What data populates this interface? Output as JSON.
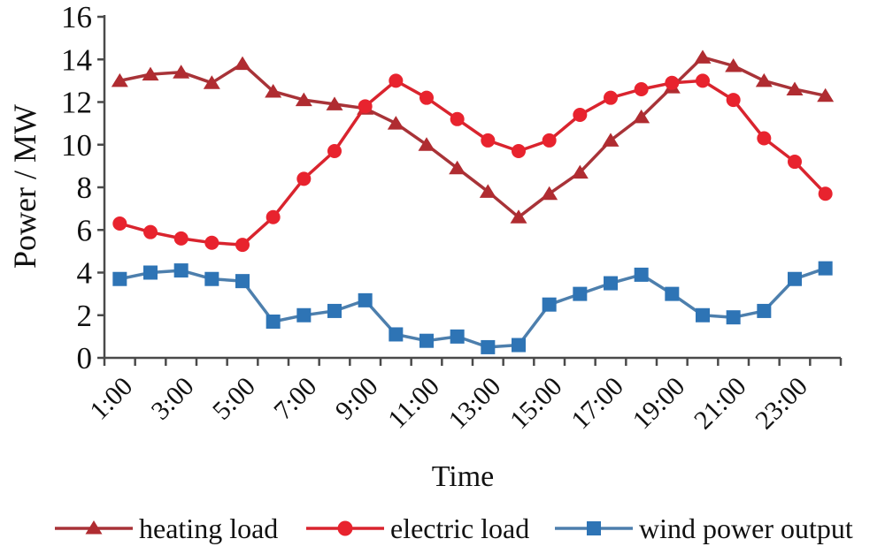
{
  "chart_data": {
    "type": "line",
    "title": "",
    "xlabel": "Time",
    "ylabel": "Power / MW",
    "ylim": [
      0,
      16
    ],
    "ytick_step": 2,
    "ytick_labels": [
      "0",
      "2",
      "4",
      "6",
      "8",
      "10",
      "12",
      "14",
      "16"
    ],
    "x_hours": [
      1,
      2,
      3,
      4,
      5,
      6,
      7,
      8,
      9,
      10,
      11,
      12,
      13,
      14,
      15,
      16,
      17,
      18,
      19,
      20,
      21,
      22,
      23,
      24
    ],
    "x_tick_labels": [
      "1:00",
      "3:00",
      "5:00",
      "7:00",
      "9:00",
      "11:00",
      "13:00",
      "15:00",
      "17:00",
      "19:00",
      "21:00",
      "23:00"
    ],
    "grid": false,
    "legend_position": "bottom",
    "axis_color": "#4a4a4a",
    "series": [
      {
        "name": "heating load",
        "marker": "triangle",
        "color": "#b02c31",
        "line_color": "#a83338",
        "values": [
          13.0,
          13.3,
          13.4,
          12.9,
          13.8,
          12.5,
          12.1,
          11.9,
          11.7,
          11.0,
          10.0,
          8.9,
          7.8,
          6.6,
          7.7,
          8.7,
          10.2,
          11.3,
          12.7,
          14.1,
          13.7,
          13.0,
          12.6,
          12.3
        ]
      },
      {
        "name": "electric load",
        "marker": "circle",
        "color": "#e8232e",
        "line_color": "#d9242e",
        "values": [
          6.3,
          5.9,
          5.6,
          5.4,
          5.3,
          6.6,
          8.4,
          9.7,
          11.8,
          13.0,
          12.2,
          11.2,
          10.2,
          9.7,
          10.2,
          11.4,
          12.2,
          12.6,
          12.9,
          13.0,
          12.1,
          10.3,
          9.2,
          7.7
        ]
      },
      {
        "name": "wind power output",
        "marker": "square",
        "color": "#2e74b5",
        "line_color": "#4d7fad",
        "values": [
          3.7,
          4.0,
          4.1,
          3.7,
          3.6,
          1.7,
          2.0,
          2.2,
          2.7,
          1.1,
          0.8,
          1.0,
          0.5,
          0.6,
          2.5,
          3.0,
          3.5,
          3.9,
          3.0,
          2.0,
          1.9,
          2.2,
          3.7,
          4.2
        ]
      }
    ]
  }
}
